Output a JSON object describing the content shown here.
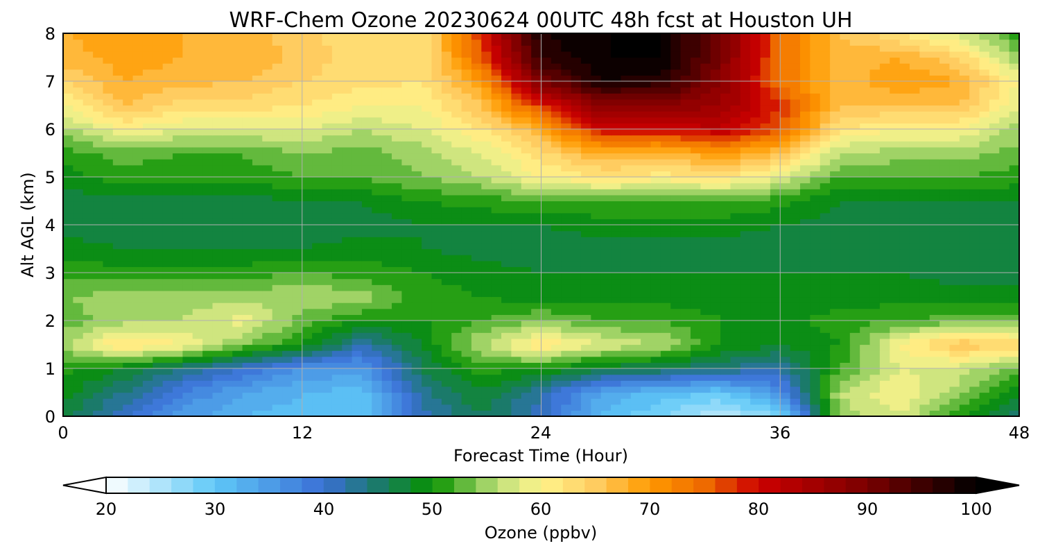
{
  "chart_data": {
    "type": "heatmap",
    "title": "WRF-Chem Ozone  20230624 00UTC 48h fcst at Houston UH",
    "xlabel": "Forecast Time (Hour)",
    "ylabel": "Alt AGL (km)",
    "xlim": [
      0,
      48
    ],
    "ylim": [
      0,
      8
    ],
    "x_ticks": [
      "0",
      "12",
      "24",
      "36",
      "48"
    ],
    "y_ticks": [
      "0",
      "1",
      "2",
      "3",
      "4",
      "5",
      "6",
      "7",
      "8"
    ],
    "grid": true,
    "colorbar": {
      "label": "Ozone  (ppbv)",
      "min": 20,
      "max": 100,
      "extend": "both",
      "ticks": [
        "20",
        "30",
        "40",
        "50",
        "60",
        "70",
        "80",
        "90",
        "100"
      ],
      "stops": [
        {
          "v": 20,
          "c": "#ffffff"
        },
        {
          "v": 30,
          "c": "#5fc8f7"
        },
        {
          "v": 40,
          "c": "#3a6fd6"
        },
        {
          "v": 45,
          "c": "#1b7a6a"
        },
        {
          "v": 50,
          "c": "#079200"
        },
        {
          "v": 56,
          "c": "#bfe07a"
        },
        {
          "v": 60,
          "c": "#fff48c"
        },
        {
          "v": 65,
          "c": "#ffcc60"
        },
        {
          "v": 70,
          "c": "#ff9a00"
        },
        {
          "v": 75,
          "c": "#ee6a00"
        },
        {
          "v": 80,
          "c": "#cc0000"
        },
        {
          "v": 90,
          "c": "#7a0000"
        },
        {
          "v": 100,
          "c": "#000000"
        }
      ]
    },
    "x": [
      0,
      3,
      6,
      9,
      12,
      15,
      18,
      21,
      24,
      27,
      30,
      33,
      36,
      39,
      42,
      45,
      48
    ],
    "y": [
      0,
      0.5,
      1,
      1.5,
      2,
      2.5,
      3,
      3.5,
      4,
      4.5,
      5,
      5.5,
      6,
      6.5,
      7,
      7.5,
      8
    ],
    "z": [
      [
        47,
        40,
        35,
        32,
        31,
        30,
        41,
        46,
        41,
        32,
        28,
        24,
        28,
        55,
        58,
        50,
        44
      ],
      [
        49,
        44,
        38,
        34,
        32,
        31,
        43,
        48,
        42,
        34,
        31,
        30,
        36,
        56,
        60,
        55,
        48
      ],
      [
        51,
        48,
        44,
        40,
        36,
        35,
        46,
        51,
        50,
        47,
        46,
        44,
        42,
        52,
        58,
        57,
        53
      ],
      [
        55,
        63,
        60,
        54,
        50,
        42,
        48,
        56,
        62,
        58,
        56,
        50,
        48,
        50,
        60,
        66,
        64
      ],
      [
        53,
        55,
        56,
        59,
        53,
        50,
        50,
        52,
        54,
        52,
        52,
        50,
        49,
        51,
        52,
        53,
        53
      ],
      [
        54,
        55,
        55,
        55,
        56,
        55,
        51,
        50,
        49,
        49,
        49,
        49,
        49,
        49,
        49,
        49,
        49
      ],
      [
        51,
        51,
        51,
        51,
        52,
        51,
        50,
        49,
        48,
        48,
        48,
        48,
        48,
        48,
        48,
        47,
        47
      ],
      [
        49,
        48,
        48,
        48,
        48,
        49,
        48,
        47,
        47,
        47,
        47,
        47,
        47,
        47,
        47,
        46,
        46
      ],
      [
        47,
        46,
        46,
        46,
        47,
        47,
        48,
        48,
        48,
        49,
        49,
        49,
        48,
        47,
        47,
        47,
        47
      ],
      [
        47,
        47,
        47,
        47,
        48,
        48,
        50,
        51,
        52,
        52,
        52,
        52,
        51,
        48,
        48,
        48,
        48
      ],
      [
        49,
        51,
        51,
        51,
        52,
        52,
        54,
        56,
        60,
        62,
        61,
        62,
        58,
        52,
        52,
        52,
        51
      ],
      [
        51,
        53,
        52,
        52,
        54,
        53,
        55,
        58,
        63,
        68,
        67,
        70,
        66,
        56,
        55,
        55,
        53
      ],
      [
        55,
        60,
        58,
        58,
        58,
        56,
        58,
        62,
        68,
        80,
        80,
        82,
        76,
        62,
        60,
        60,
        55
      ],
      [
        60,
        66,
        63,
        63,
        62,
        60,
        60,
        66,
        78,
        88,
        88,
        86,
        78,
        66,
        66,
        66,
        58
      ],
      [
        64,
        68,
        67,
        66,
        64,
        63,
        62,
        70,
        90,
        98,
        97,
        88,
        74,
        66,
        70,
        68,
        60
      ],
      [
        67,
        69,
        68,
        68,
        65,
        63,
        62,
        76,
        96,
        100,
        100,
        90,
        74,
        67,
        68,
        64,
        54
      ],
      [
        68,
        69,
        68,
        67,
        65,
        62,
        62,
        78,
        98,
        100,
        100,
        90,
        74,
        66,
        62,
        57,
        51
      ]
    ]
  }
}
